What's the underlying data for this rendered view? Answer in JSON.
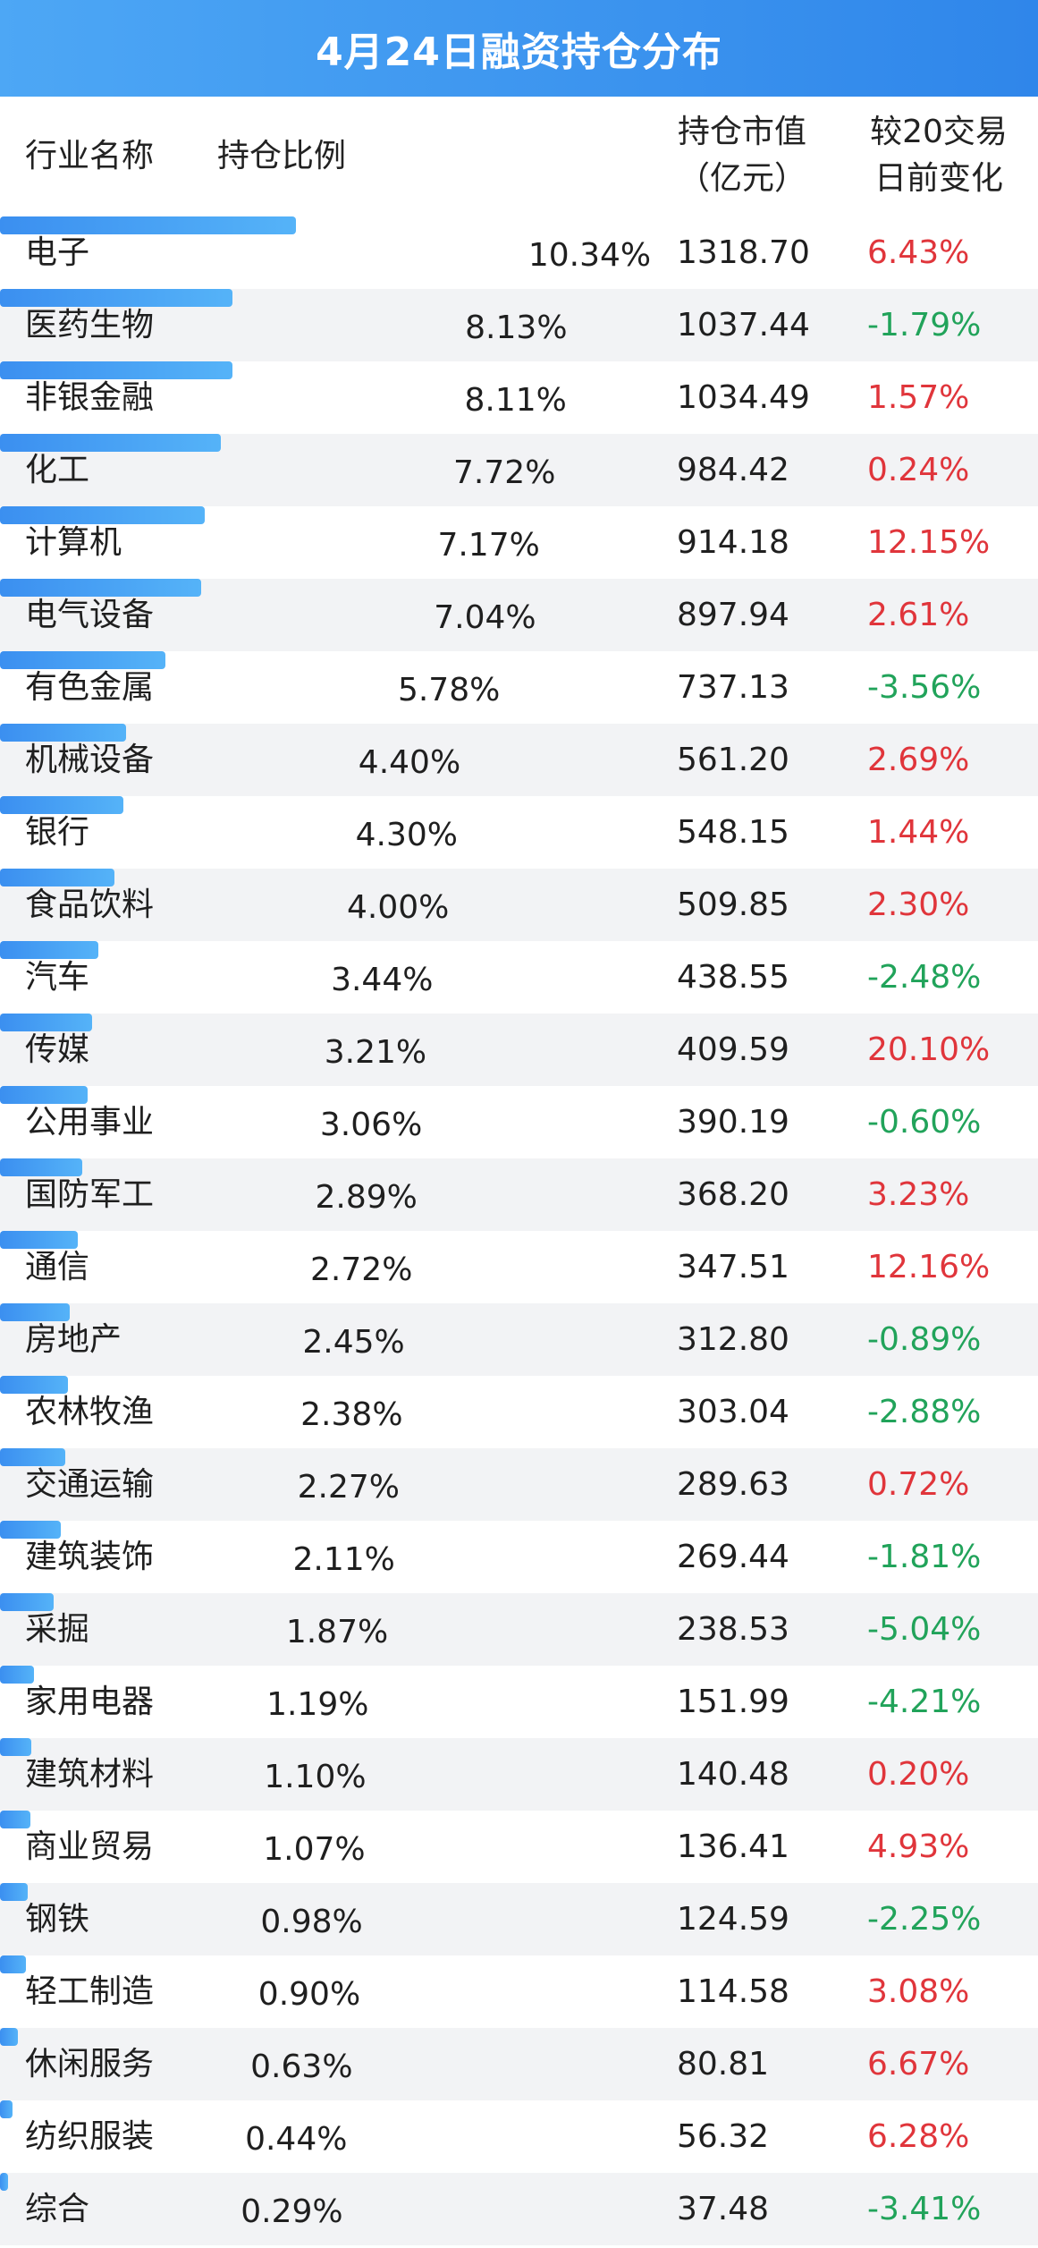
{
  "title": "4月24日融资持仓分布",
  "columns": {
    "name": "行业名称",
    "ratio": "持仓比例",
    "value_line1": "持仓市值",
    "value_line2": "（亿元）",
    "change_line1": "较20交易",
    "change_line2": "日前变化"
  },
  "colors": {
    "up": "#e0353b",
    "down": "#21a35a",
    "bar": "#3b8ff0",
    "title_bg": "#3a93ee"
  },
  "chart_data": {
    "type": "table",
    "title": "4月24日融资持仓分布",
    "columns": [
      "行业名称",
      "持仓比例",
      "持仓市值（亿元）",
      "较20交易日前变化"
    ],
    "rows": [
      {
        "industry": "电子",
        "ratio": 10.34,
        "ratio_label": "10.34%",
        "value": "1318.70",
        "change": "6.43%"
      },
      {
        "industry": "医药生物",
        "ratio": 8.13,
        "ratio_label": "8.13%",
        "value": "1037.44",
        "change": "-1.79%"
      },
      {
        "industry": "非银金融",
        "ratio": 8.11,
        "ratio_label": "8.11%",
        "value": "1034.49",
        "change": "1.57%"
      },
      {
        "industry": "化工",
        "ratio": 7.72,
        "ratio_label": "7.72%",
        "value": "984.42",
        "change": "0.24%"
      },
      {
        "industry": "计算机",
        "ratio": 7.17,
        "ratio_label": "7.17%",
        "value": "914.18",
        "change": "12.15%"
      },
      {
        "industry": "电气设备",
        "ratio": 7.04,
        "ratio_label": "7.04%",
        "value": "897.94",
        "change": "2.61%"
      },
      {
        "industry": "有色金属",
        "ratio": 5.78,
        "ratio_label": "5.78%",
        "value": "737.13",
        "change": "-3.56%"
      },
      {
        "industry": "机械设备",
        "ratio": 4.4,
        "ratio_label": "4.40%",
        "value": "561.20",
        "change": "2.69%"
      },
      {
        "industry": "银行",
        "ratio": 4.3,
        "ratio_label": "4.30%",
        "value": "548.15",
        "change": "1.44%"
      },
      {
        "industry": "食品饮料",
        "ratio": 4.0,
        "ratio_label": "4.00%",
        "value": "509.85",
        "change": "2.30%"
      },
      {
        "industry": "汽车",
        "ratio": 3.44,
        "ratio_label": "3.44%",
        "value": "438.55",
        "change": "-2.48%"
      },
      {
        "industry": "传媒",
        "ratio": 3.21,
        "ratio_label": "3.21%",
        "value": "409.59",
        "change": "20.10%"
      },
      {
        "industry": "公用事业",
        "ratio": 3.06,
        "ratio_label": "3.06%",
        "value": "390.19",
        "change": "-0.60%"
      },
      {
        "industry": "国防军工",
        "ratio": 2.89,
        "ratio_label": "2.89%",
        "value": "368.20",
        "change": "3.23%"
      },
      {
        "industry": "通信",
        "ratio": 2.72,
        "ratio_label": "2.72%",
        "value": "347.51",
        "change": "12.16%"
      },
      {
        "industry": "房地产",
        "ratio": 2.45,
        "ratio_label": "2.45%",
        "value": "312.80",
        "change": "-0.89%"
      },
      {
        "industry": "农林牧渔",
        "ratio": 2.38,
        "ratio_label": "2.38%",
        "value": "303.04",
        "change": "-2.88%"
      },
      {
        "industry": "交通运输",
        "ratio": 2.27,
        "ratio_label": "2.27%",
        "value": "289.63",
        "change": "0.72%"
      },
      {
        "industry": "建筑装饰",
        "ratio": 2.11,
        "ratio_label": "2.11%",
        "value": "269.44",
        "change": "-1.81%"
      },
      {
        "industry": "采掘",
        "ratio": 1.87,
        "ratio_label": "1.87%",
        "value": "238.53",
        "change": "-5.04%"
      },
      {
        "industry": "家用电器",
        "ratio": 1.19,
        "ratio_label": "1.19%",
        "value": "151.99",
        "change": "-4.21%"
      },
      {
        "industry": "建筑材料",
        "ratio": 1.1,
        "ratio_label": "1.10%",
        "value": "140.48",
        "change": "0.20%"
      },
      {
        "industry": "商业贸易",
        "ratio": 1.07,
        "ratio_label": "1.07%",
        "value": "136.41",
        "change": "4.93%"
      },
      {
        "industry": "钢铁",
        "ratio": 0.98,
        "ratio_label": "0.98%",
        "value": "124.59",
        "change": "-2.25%"
      },
      {
        "industry": "轻工制造",
        "ratio": 0.9,
        "ratio_label": "0.90%",
        "value": "114.58",
        "change": "3.08%"
      },
      {
        "industry": "休闲服务",
        "ratio": 0.63,
        "ratio_label": "0.63%",
        "value": "80.81",
        "change": "6.67%"
      },
      {
        "industry": "纺织服装",
        "ratio": 0.44,
        "ratio_label": "0.44%",
        "value": "56.32",
        "change": "6.28%"
      },
      {
        "industry": "综合",
        "ratio": 0.29,
        "ratio_label": "0.29%",
        "value": "37.48",
        "change": "-3.41%"
      }
    ]
  }
}
